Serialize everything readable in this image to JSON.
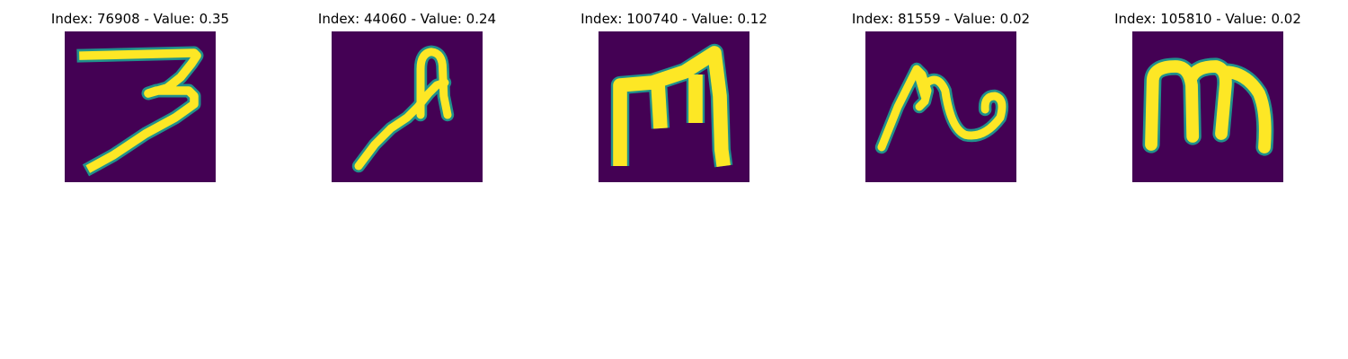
{
  "colors": {
    "background": "#440154",
    "stroke": "#fde725",
    "edge": "#21918c"
  },
  "panels": [
    {
      "title": "Index: 76908 - Value: 0.35",
      "glyph": "digit-3"
    },
    {
      "title": "Index: 44060 - Value: 0.24",
      "glyph": "letter-a"
    },
    {
      "title": "Index: 100740 - Value: 0.12",
      "glyph": "letter-m-tall"
    },
    {
      "title": "Index: 81559 - Value: 0.02",
      "glyph": "letter-n-curl"
    },
    {
      "title": "Index: 105810 - Value: 0.02",
      "glyph": "letter-m"
    }
  ]
}
